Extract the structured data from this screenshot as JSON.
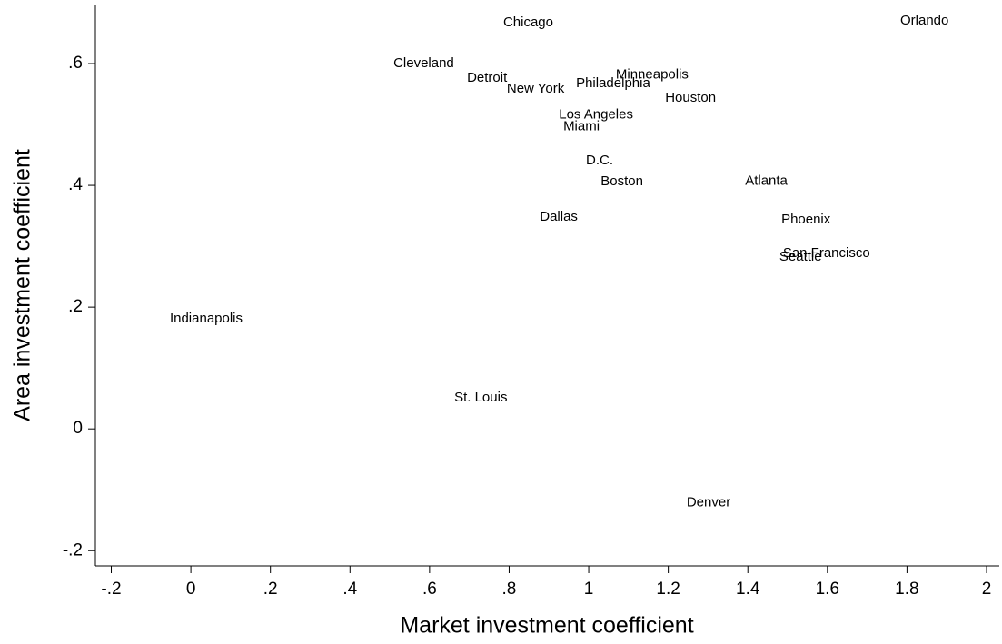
{
  "chart_data": {
    "type": "scatter",
    "x_label": "Market investment coefficient",
    "y_label": "Area investment coefficient",
    "labels": [
      "Chicago",
      "Orlando",
      "Cleveland",
      "Detroit",
      "New York",
      "Philadelphia",
      "Minneapolis",
      "Houston",
      "Los Angeles",
      "Miami",
      "D.C.",
      "Boston",
      "Atlanta",
      "Dallas",
      "Phoenix",
      "San Francisco",
      "Seattle",
      "Indianapolis",
      "St. Louis",
      "Denver"
    ],
    "x": [
      0.776,
      1.774,
      0.5,
      0.685,
      0.785,
      0.959,
      1.059,
      1.183,
      0.916,
      0.927,
      0.984,
      1.021,
      1.384,
      0.868,
      1.475,
      1.479,
      1.47,
      -0.062,
      0.653,
      1.237
    ],
    "y": [
      0.667,
      0.67,
      0.6,
      0.576,
      0.558,
      0.567,
      0.581,
      0.543,
      0.516,
      0.496,
      0.44,
      0.406,
      0.407,
      0.348,
      0.343,
      0.288,
      0.282,
      0.181,
      0.051,
      -0.121
    ],
    "xlim": [
      -0.24,
      2.032
    ],
    "ylim": [
      -0.225,
      0.697
    ],
    "xticks": [
      {
        "value": -0.2,
        "label": "-.2"
      },
      0,
      {
        "value": 0.2,
        "label": ".2"
      },
      {
        "value": 0.4,
        "label": ".4"
      },
      {
        "value": 0.6,
        "label": ".6"
      },
      {
        "value": 0.8,
        "label": ".8"
      },
      1,
      1.2,
      1.4,
      1.6,
      1.8,
      2
    ],
    "yticks": [
      {
        "value": -0.2,
        "label": "-.2"
      },
      0,
      {
        "value": 0.2,
        "label": ".2"
      },
      {
        "value": 0.4,
        "label": ".4"
      },
      {
        "value": 0.6,
        "label": ".6"
      }
    ],
    "grid": false
  }
}
